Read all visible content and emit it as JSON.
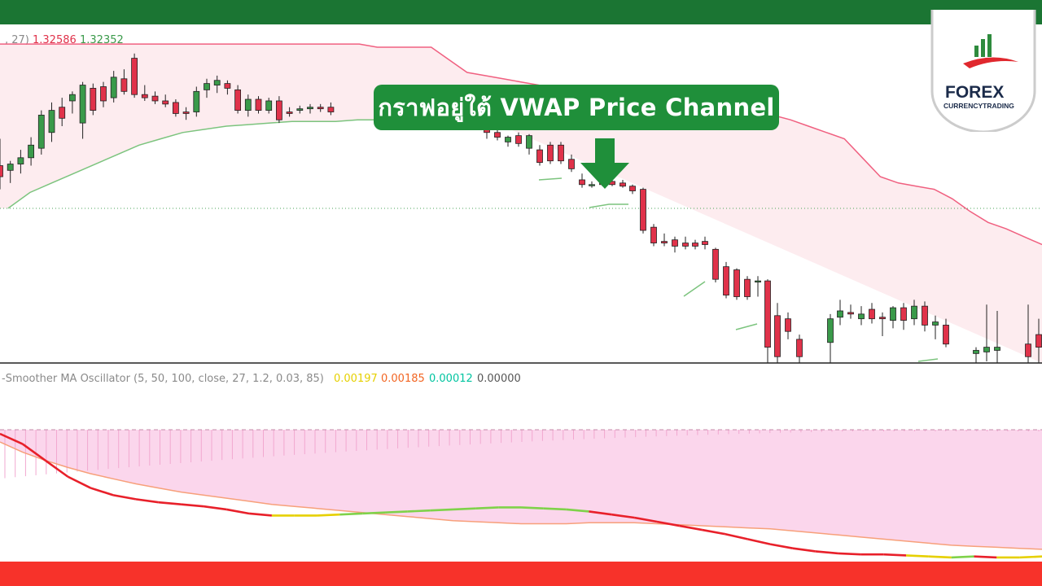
{
  "callout": {
    "text": "กราฟอยู่ใต้ VWAP Price Channel"
  },
  "logo": {
    "brand": "FOREX",
    "sub": "CURRENCYTRADING"
  },
  "price_legend": {
    "prefix": ", 27)",
    "upper_value": "1.32586",
    "lower_value": "1.32352"
  },
  "osc_legend": {
    "title": "-Smoother MA Oscillator (5, 50, 100, close, 27, 1.2, 0.03, 85)",
    "values": [
      "0.00197",
      "0.00185",
      "0.00012",
      "0.00000"
    ]
  },
  "colors": {
    "top_bar": "#1b7533",
    "bottom_bar": "#f7322a",
    "bull": "#3a9a4a",
    "bear": "#e0324a",
    "upper_band": "#f06080",
    "lower_band": "#7cc47e",
    "channel_fill": "#fdecef",
    "osc_fill": "#fbd6ec",
    "callout_bg": "#1f8f3a",
    "legend_upper": "#e0324a",
    "legend_lower": "#3a9a4a",
    "legend_val_1": "#e6d000",
    "legend_val_2": "#f26522",
    "legend_val_3": "#00c4a0",
    "legend_val_4": "#555555"
  },
  "chart_data": [
    {
      "type": "candlestick",
      "title": "",
      "series": [
        {
          "name": "candles",
          "values": [
            {
              "o": 1.3225,
              "h": 1.3242,
              "l": 1.321,
              "c": 1.3218
            },
            {
              "o": 1.3222,
              "h": 1.3228,
              "l": 1.3214,
              "c": 1.3226
            },
            {
              "o": 1.3226,
              "h": 1.3235,
              "l": 1.322,
              "c": 1.323
            },
            {
              "o": 1.323,
              "h": 1.3243,
              "l": 1.3225,
              "c": 1.3238
            },
            {
              "o": 1.3236,
              "h": 1.326,
              "l": 1.3232,
              "c": 1.3257
            },
            {
              "o": 1.3246,
              "h": 1.3265,
              "l": 1.324,
              "c": 1.326
            },
            {
              "o": 1.3262,
              "h": 1.3268,
              "l": 1.325,
              "c": 1.3255
            },
            {
              "o": 1.3266,
              "h": 1.3272,
              "l": 1.3258,
              "c": 1.327
            },
            {
              "o": 1.3252,
              "h": 1.3278,
              "l": 1.3242,
              "c": 1.3276
            },
            {
              "o": 1.3274,
              "h": 1.3277,
              "l": 1.3257,
              "c": 1.326
            },
            {
              "o": 1.3275,
              "h": 1.3278,
              "l": 1.3262,
              "c": 1.3266
            },
            {
              "o": 1.3268,
              "h": 1.3285,
              "l": 1.3265,
              "c": 1.3281
            },
            {
              "o": 1.328,
              "h": 1.3286,
              "l": 1.327,
              "c": 1.3272
            },
            {
              "o": 1.3293,
              "h": 1.3296,
              "l": 1.3268,
              "c": 1.327
            },
            {
              "o": 1.327,
              "h": 1.3276,
              "l": 1.3266,
              "c": 1.3268
            },
            {
              "o": 1.3269,
              "h": 1.3272,
              "l": 1.3264,
              "c": 1.3266
            },
            {
              "o": 1.3266,
              "h": 1.327,
              "l": 1.3262,
              "c": 1.3264
            },
            {
              "o": 1.3265,
              "h": 1.3267,
              "l": 1.3256,
              "c": 1.3258
            },
            {
              "o": 1.3259,
              "h": 1.3262,
              "l": 1.3254,
              "c": 1.3258
            },
            {
              "o": 1.3259,
              "h": 1.3275,
              "l": 1.3256,
              "c": 1.3272
            },
            {
              "o": 1.3273,
              "h": 1.328,
              "l": 1.3268,
              "c": 1.3277
            },
            {
              "o": 1.3276,
              "h": 1.3282,
              "l": 1.3271,
              "c": 1.3279
            },
            {
              "o": 1.3277,
              "h": 1.3279,
              "l": 1.327,
              "c": 1.3274
            },
            {
              "o": 1.3273,
              "h": 1.3276,
              "l": 1.3258,
              "c": 1.326
            },
            {
              "o": 1.326,
              "h": 1.327,
              "l": 1.3256,
              "c": 1.3267
            },
            {
              "o": 1.3267,
              "h": 1.3269,
              "l": 1.3258,
              "c": 1.326
            },
            {
              "o": 1.326,
              "h": 1.3268,
              "l": 1.3258,
              "c": 1.3266
            },
            {
              "o": 1.3266,
              "h": 1.3269,
              "l": 1.3252,
              "c": 1.3254
            },
            {
              "o": 1.3259,
              "h": 1.3262,
              "l": 1.3256,
              "c": 1.3258
            },
            {
              "o": 1.326,
              "h": 1.3263,
              "l": 1.3258,
              "c": 1.3261
            },
            {
              "o": 1.3261,
              "h": 1.3264,
              "l": 1.3258,
              "c": 1.3262
            },
            {
              "o": 1.3262,
              "h": 1.3264,
              "l": 1.3259,
              "c": 1.3261
            },
            {
              "o": 1.3262,
              "h": 1.3265,
              "l": 1.3257,
              "c": 1.3259
            }
          ]
        },
        {
          "name": "candles-2",
          "values": [
            {
              "o": 1.325,
              "h": 1.3256,
              "l": 1.3242,
              "c": 1.3246
            },
            {
              "o": 1.3246,
              "h": 1.3248,
              "l": 1.3241,
              "c": 1.3243
            },
            {
              "o": 1.324,
              "h": 1.3244,
              "l": 1.3237,
              "c": 1.3243
            },
            {
              "o": 1.3244,
              "h": 1.3246,
              "l": 1.3237,
              "c": 1.3239
            },
            {
              "o": 1.3236,
              "h": 1.3245,
              "l": 1.3232,
              "c": 1.3244
            },
            {
              "o": 1.3235,
              "h": 1.3238,
              "l": 1.3225,
              "c": 1.3227
            },
            {
              "o": 1.3238,
              "h": 1.324,
              "l": 1.3226,
              "c": 1.3228
            },
            {
              "o": 1.3238,
              "h": 1.324,
              "l": 1.3226,
              "c": 1.3228
            },
            {
              "o": 1.3229,
              "h": 1.3232,
              "l": 1.3221,
              "c": 1.3223
            },
            {
              "o": 1.3216,
              "h": 1.322,
              "l": 1.3211,
              "c": 1.3213
            },
            {
              "o": 1.3213,
              "h": 1.3215,
              "l": 1.3211,
              "c": 1.3213
            },
            {
              "o": 1.3214,
              "h": 1.3216,
              "l": 1.3212,
              "c": 1.3213
            },
            {
              "o": 1.3215,
              "h": 1.3216,
              "l": 1.3212,
              "c": 1.3213
            },
            {
              "o": 1.3214,
              "h": 1.3216,
              "l": 1.3211,
              "c": 1.3212
            },
            {
              "o": 1.3212,
              "h": 1.3213,
              "l": 1.3207,
              "c": 1.3209
            },
            {
              "o": 1.321,
              "h": 1.3211,
              "l": 1.3182,
              "c": 1.3184
            },
            {
              "o": 1.3186,
              "h": 1.3188,
              "l": 1.3174,
              "c": 1.3176
            },
            {
              "o": 1.3177,
              "h": 1.3182,
              "l": 1.3174,
              "c": 1.3176
            },
            {
              "o": 1.3178,
              "h": 1.318,
              "l": 1.317,
              "c": 1.3174
            },
            {
              "o": 1.3176,
              "h": 1.318,
              "l": 1.3172,
              "c": 1.3174
            },
            {
              "o": 1.3176,
              "h": 1.3178,
              "l": 1.3172,
              "c": 1.3174
            },
            {
              "o": 1.3177,
              "h": 1.318,
              "l": 1.3172,
              "c": 1.3175
            },
            {
              "o": 1.3172,
              "h": 1.3173,
              "l": 1.3151,
              "c": 1.3153
            },
            {
              "o": 1.3161,
              "h": 1.3164,
              "l": 1.3141,
              "c": 1.3143
            },
            {
              "o": 1.3159,
              "h": 1.316,
              "l": 1.314,
              "c": 1.3142
            },
            {
              "o": 1.3153,
              "h": 1.3155,
              "l": 1.314,
              "c": 1.3142
            },
            {
              "o": 1.3152,
              "h": 1.3155,
              "l": 1.3142,
              "c": 1.3152
            },
            {
              "o": 1.3152,
              "h": 1.3153,
              "l": 1.309,
              "c": 1.311
            }
          ]
        }
      ]
    },
    {
      "type": "line",
      "title": "",
      "series": [
        {
          "values": [
            1.3302,
            1.3302,
            1.3302,
            1.3302,
            1.3302,
            1.3302,
            1.3302,
            1.3302,
            1.3302,
            1.3302,
            1.3302,
            1.3302,
            1.3302,
            1.3302,
            1.3302,
            1.3302,
            1.3302,
            1.3302,
            1.3302,
            1.3302,
            1.3302,
            1.33,
            1.33,
            1.33,
            1.33,
            1.3292,
            1.3284,
            1.3282,
            1.328,
            1.3278,
            1.3276,
            1.3275,
            1.3274,
            1.3273,
            1.3272,
            1.3271,
            1.327,
            1.3269,
            1.3268,
            1.3266,
            1.3264,
            1.3262,
            1.326,
            1.3257,
            1.3254,
            1.325,
            1.3246,
            1.3242,
            1.323,
            1.3218,
            1.3214,
            1.3212,
            1.321,
            1.3204,
            1.3196,
            1.3189,
            1.3185,
            1.318,
            1.3175
          ]
        },
        {
          "values": [
            1.3198,
            1.3208,
            1.3214,
            1.322,
            1.3226,
            1.3232,
            1.3238,
            1.3242,
            1.3246,
            1.3248,
            1.325,
            1.3251,
            1.3252,
            1.3253,
            1.3253,
            1.3253,
            1.3254,
            1.3254,
            1.3254,
            1.3254,
            1.3254,
            1.3254,
            1.3254
          ]
        }
      ]
    },
    {
      "type": "line",
      "title": "",
      "series": [
        {
          "values": [
            0.92,
            0.82,
            0.74,
            0.67,
            0.61,
            0.56,
            0.51,
            0.47,
            0.43,
            0.4,
            0.37,
            0.34,
            0.31,
            0.29,
            0.27,
            0.25,
            0.23,
            0.21,
            0.19,
            0.17,
            0.15,
            0.14,
            0.13,
            0.12,
            0.12,
            0.12,
            0.13,
            0.13,
            0.13,
            0.12,
            0.11,
            0.1,
            0.09,
            0.08,
            0.07,
            0.05,
            0.03,
            0.01,
            -0.01,
            -0.03,
            -0.05,
            -0.07,
            -0.09,
            -0.1,
            -0.11,
            -0.12,
            -0.13
          ]
        },
        {
          "values": [
            1.0,
            0.9,
            0.74,
            0.58,
            0.47,
            0.4,
            0.36,
            0.33,
            0.31,
            0.29,
            0.26,
            0.22,
            0.2,
            0.2,
            0.2,
            0.21,
            0.22,
            0.23,
            0.24,
            0.25,
            0.26,
            0.27,
            0.28,
            0.28,
            0.27,
            0.26,
            0.24,
            0.21,
            0.18,
            0.14,
            0.1,
            0.06,
            0.02,
            -0.03,
            -0.08,
            -0.12,
            -0.15,
            -0.17,
            -0.18,
            -0.18,
            -0.19,
            -0.2,
            -0.21,
            -0.2,
            -0.21,
            -0.21,
            -0.2
          ]
        }
      ]
    }
  ]
}
